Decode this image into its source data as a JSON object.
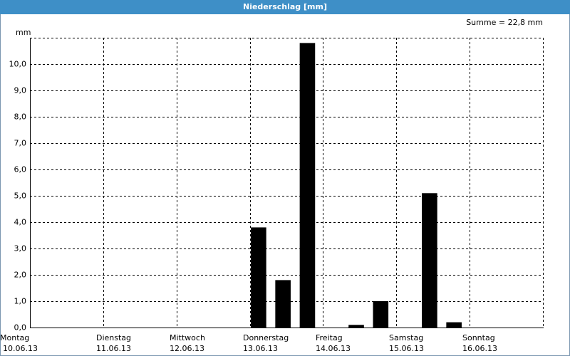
{
  "chart_data": {
    "type": "bar",
    "title": "Niederschlag [mm]",
    "annotation": "Summe = 22,8 mm",
    "y_unit": "mm",
    "days": [
      {
        "name": "Montag",
        "date": "10.06.13"
      },
      {
        "name": "Dienstag",
        "date": "11.06.13"
      },
      {
        "name": "Mittwoch",
        "date": "12.06.13"
      },
      {
        "name": "Donnerstag",
        "date": "13.06.13"
      },
      {
        "name": "Freitag",
        "date": "14.06.13"
      },
      {
        "name": "Samstag",
        "date": "15.06.13"
      },
      {
        "name": "Sonntag",
        "date": "16.06.13"
      }
    ],
    "values": [
      0,
      0,
      0,
      0,
      0,
      0,
      0,
      0,
      0,
      3.8,
      1.8,
      10.8,
      0,
      0.1,
      1.0,
      0,
      5.1,
      0.2,
      0,
      0,
      0
    ],
    "color": "#000000",
    "ylim": [
      0,
      11
    ],
    "yticks": [
      {
        "value": 0,
        "label": "0,0"
      },
      {
        "value": 1,
        "label": "1,0"
      },
      {
        "value": 2,
        "label": "2,0"
      },
      {
        "value": 3,
        "label": "3,0"
      },
      {
        "value": 4,
        "label": "4,0"
      },
      {
        "value": 5,
        "label": "5,0"
      },
      {
        "value": 6,
        "label": "6,0"
      },
      {
        "value": 7,
        "label": "7,0"
      },
      {
        "value": 8,
        "label": "8,0"
      },
      {
        "value": 9,
        "label": "9,0"
      },
      {
        "value": 10,
        "label": "10,0"
      }
    ],
    "grid": true
  }
}
